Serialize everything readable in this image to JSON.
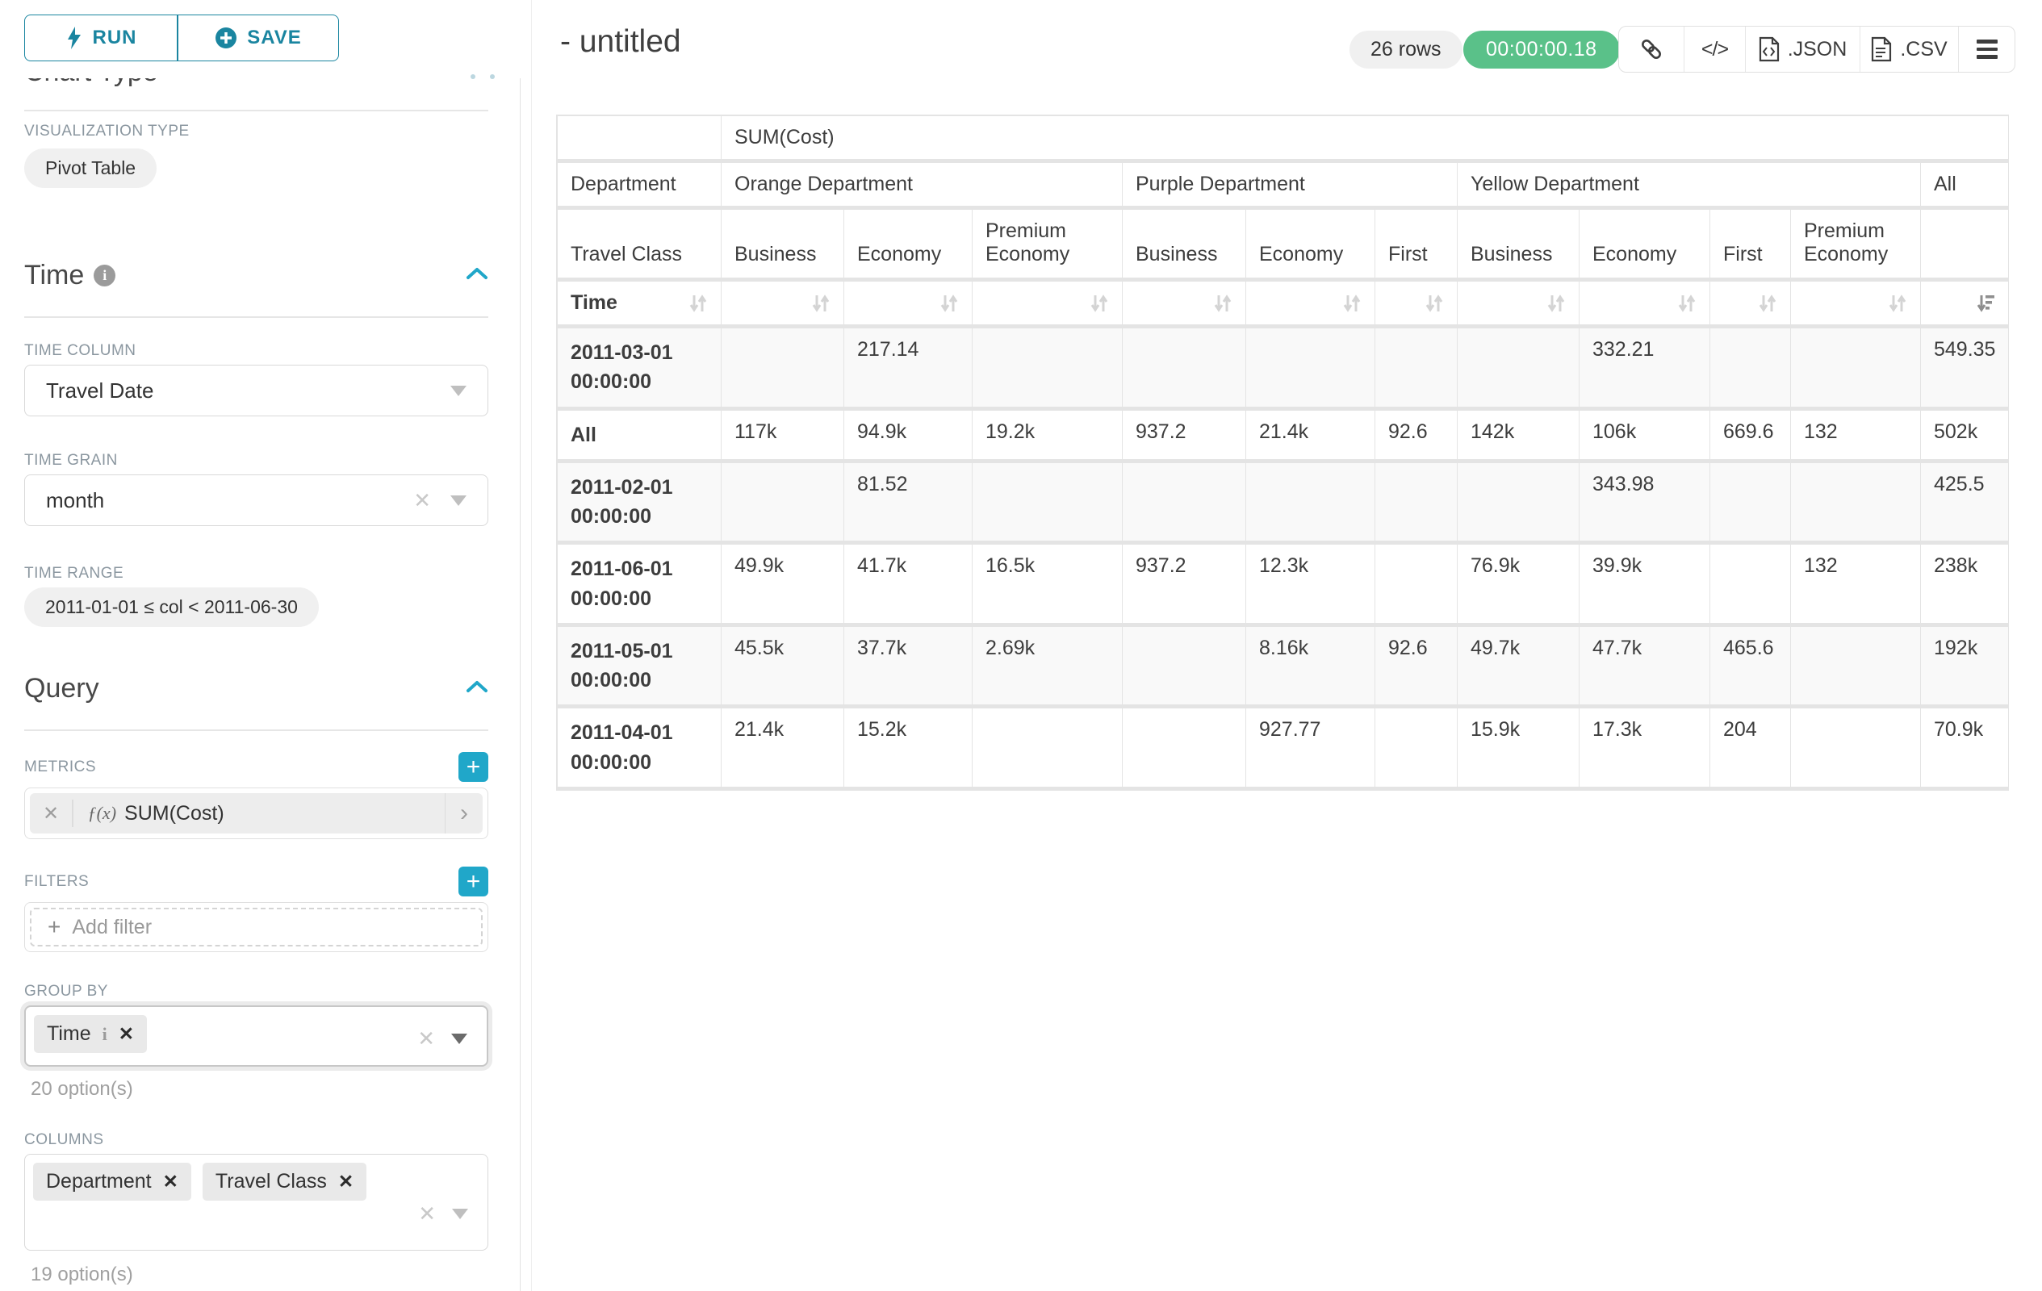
{
  "colors": {
    "accent": "#20a7c9",
    "button_teal": "#1a85a0",
    "success_green": "#5ac189",
    "pill_gray": "#f0f0f0",
    "table_border": "#e4e4e4"
  },
  "icons": {
    "run": "lightning-bolt-icon",
    "save": "plus-circle-icon",
    "time_info": "info-circle-icon",
    "collapse": "chevron-up-icon",
    "select": "caret-down-icon",
    "metric": "function-fx-icon",
    "share": "link-icon",
    "embed": "code-icon",
    "json": "file-json-icon",
    "csv": "file-csv-icon",
    "menu": "hamburger-icon",
    "sort": "sort-arrows-icon",
    "sort_active": "sort-descending-icon"
  },
  "sidebar": {
    "run_label": "RUN",
    "save_label": "SAVE",
    "chart_type_section": "Chart Type",
    "viz_type_label": "VISUALIZATION TYPE",
    "viz_type_value": "Pivot Table",
    "time_section": "Time",
    "time_column_label": "TIME COLUMN",
    "time_column_value": "Travel Date",
    "time_grain_label": "TIME GRAIN",
    "time_grain_value": "month",
    "time_range_label": "TIME RANGE",
    "time_range_value": "2011-01-01 ≤ col < 2011-06-30",
    "query_section": "Query",
    "metrics_label": "METRICS",
    "metric_fx": "ƒ(x)",
    "metric_value": "SUM(Cost)",
    "filters_label": "FILTERS",
    "add_filter_label": "Add filter",
    "group_by_label": "GROUP BY",
    "group_by_tags": [
      "Time"
    ],
    "group_by_options": "20 option(s)",
    "columns_label": "COLUMNS",
    "columns_tags": [
      "Department",
      "Travel Class"
    ],
    "columns_options": "19 option(s)"
  },
  "header": {
    "title": "- untitled",
    "row_count": "26 rows",
    "timer": "00:00:00.18",
    "json_label": ".JSON",
    "csv_label": ".CSV"
  },
  "chart_data": {
    "type": "table",
    "metric_header": "SUM(Cost)",
    "corner_row2": "Department",
    "corner_row3": "Travel Class",
    "corner_row4": "Time",
    "column_groups": [
      {
        "label": "Orange Department",
        "columns": [
          "Business",
          "Economy",
          "Premium Economy"
        ]
      },
      {
        "label": "Purple Department",
        "columns": [
          "Business",
          "Economy",
          "First"
        ]
      },
      {
        "label": "Yellow Department",
        "columns": [
          "Business",
          "Economy",
          "First",
          "Premium Economy"
        ]
      },
      {
        "label": "All",
        "columns": [
          ""
        ]
      }
    ],
    "rows": [
      {
        "label": "2011-03-01 00:00:00",
        "values": [
          "",
          "217.14",
          "",
          "",
          "",
          "",
          "",
          "332.21",
          "",
          "",
          "549.35"
        ]
      },
      {
        "label": "All",
        "values": [
          "117k",
          "94.9k",
          "19.2k",
          "937.2",
          "21.4k",
          "92.6",
          "142k",
          "106k",
          "669.6",
          "132",
          "502k"
        ]
      },
      {
        "label": "2011-02-01 00:00:00",
        "values": [
          "",
          "81.52",
          "",
          "",
          "",
          "",
          "",
          "343.98",
          "",
          "",
          "425.5"
        ]
      },
      {
        "label": "2011-06-01 00:00:00",
        "values": [
          "49.9k",
          "41.7k",
          "16.5k",
          "937.2",
          "12.3k",
          "",
          "76.9k",
          "39.9k",
          "",
          "132",
          "238k"
        ]
      },
      {
        "label": "2011-05-01 00:00:00",
        "values": [
          "45.5k",
          "37.7k",
          "2.69k",
          "",
          "8.16k",
          "92.6",
          "49.7k",
          "47.7k",
          "465.6",
          "",
          "192k"
        ]
      },
      {
        "label": "2011-04-01 00:00:00",
        "values": [
          "21.4k",
          "15.2k",
          "",
          "",
          "927.77",
          "",
          "15.9k",
          "17.3k",
          "204",
          "",
          "70.9k"
        ]
      }
    ],
    "sorted_column": "All",
    "sort_direction": "descending"
  }
}
